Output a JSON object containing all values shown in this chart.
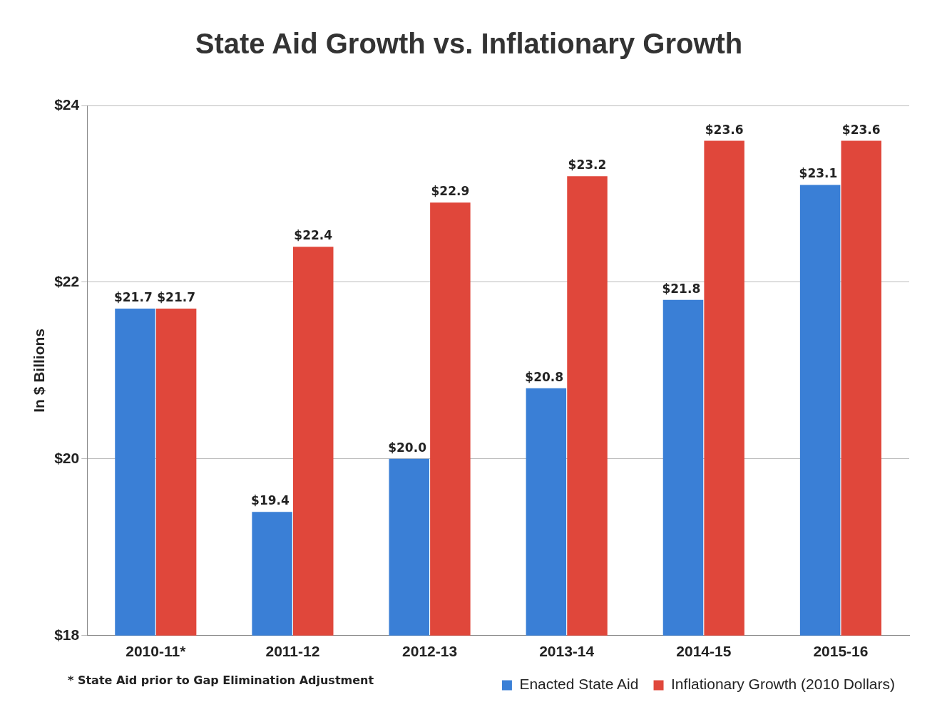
{
  "chart_data": {
    "type": "bar",
    "title": "State Aid Growth vs. Inflationary Growth",
    "ylabel": "In $ Billions",
    "categories": [
      "2010-11*",
      "2011-12",
      "2012-13",
      "2013-14",
      "2014-15",
      "2015-16"
    ],
    "series": [
      {
        "name": "Enacted State Aid",
        "color": "#3a7fd6",
        "values": [
          21.7,
          19.4,
          20.0,
          20.8,
          21.8,
          23.1
        ],
        "value_labels": [
          "$21.7",
          "$19.4",
          "$20.0",
          "$20.8",
          "$21.8",
          "$23.1"
        ]
      },
      {
        "name": "Inflationary Growth (2010 Dollars)",
        "color": "#e0473b",
        "values": [
          21.7,
          22.4,
          22.9,
          23.2,
          23.6,
          23.6
        ],
        "value_labels": [
          "$21.7",
          "$22.4",
          "$22.9",
          "$23.2",
          "$23.6",
          "$23.6"
        ]
      }
    ],
    "ylim": [
      18,
      24
    ],
    "yticks": [
      {
        "value": 18,
        "label": "$18"
      },
      {
        "value": 20,
        "label": "$20"
      },
      {
        "value": 22,
        "label": "$22"
      },
      {
        "value": 24,
        "label": "$24"
      }
    ],
    "grid": "y",
    "legend": "bottom right",
    "annotations": [
      "* State Aid prior to Gap Elimination Adjustment"
    ]
  }
}
